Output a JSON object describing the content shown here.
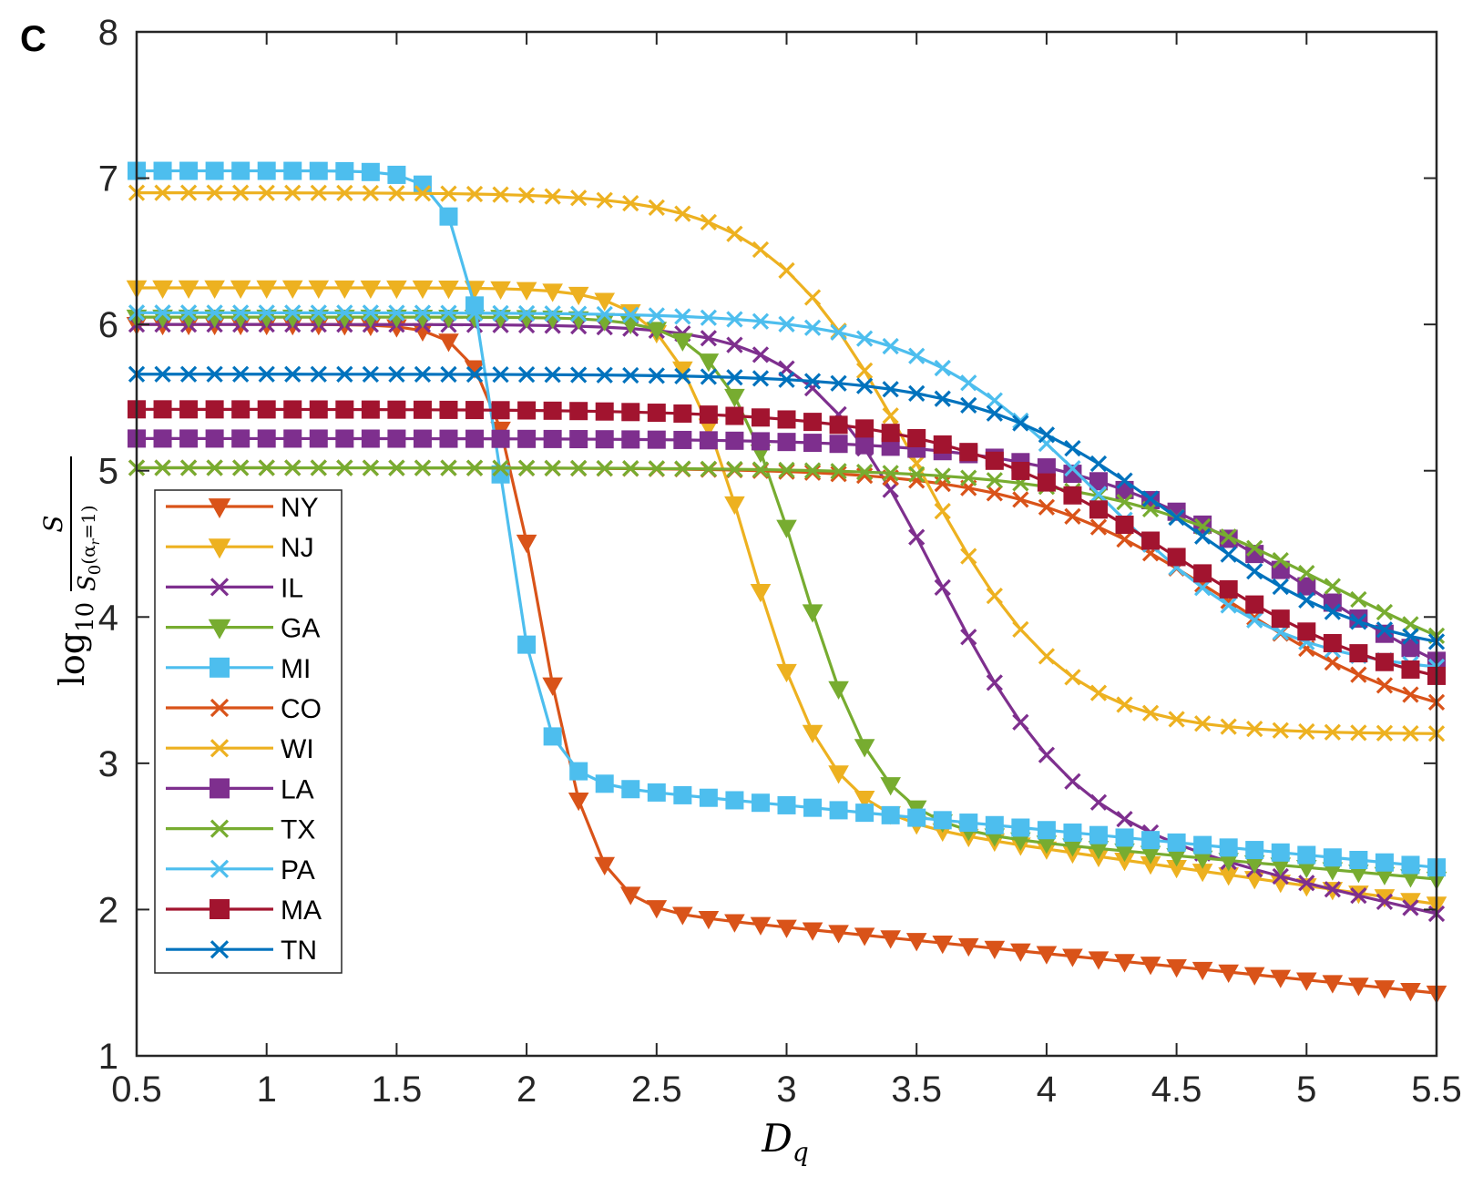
{
  "panel_label": "C",
  "chart_data": {
    "type": "line",
    "xlabel": {
      "main": "D",
      "sub": "q"
    },
    "ylabel": {
      "prefix": "log",
      "prefix_sub": "10",
      "numerator": "S",
      "denominator": "S",
      "denominator_sub": "0",
      "denominator_paren": "(α",
      "denominator_paren_sub": "r",
      "denominator_end": "=1)"
    },
    "xlim": [
      0.5,
      5.5
    ],
    "ylim": [
      1,
      8
    ],
    "x_ticks": [
      0.5,
      1,
      1.5,
      2,
      2.5,
      3,
      3.5,
      4,
      4.5,
      5,
      5.5
    ],
    "x_tick_labels": [
      "0.5",
      "1",
      "1.5",
      "2",
      "2.5",
      "3",
      "3.5",
      "4",
      "4.5",
      "5",
      "5.5"
    ],
    "y_ticks": [
      1,
      2,
      3,
      4,
      5,
      6,
      7,
      8
    ],
    "y_tick_labels": [
      "1",
      "2",
      "3",
      "4",
      "5",
      "6",
      "7",
      "8"
    ],
    "x_step": 0.1,
    "legend_position": "bottom-left",
    "series": [
      {
        "name": "NY",
        "color": "#D95319",
        "marker": "triangle-down",
        "kind": "sigmoid",
        "y_hi": 6.0,
        "y_lo": 2.05,
        "center": 2.05,
        "width": 0.1,
        "tail": 0.18
      },
      {
        "name": "NJ",
        "color": "#EDB120",
        "marker": "triangle-down",
        "kind": "sigmoid",
        "y_hi": 6.25,
        "y_lo": 2.7,
        "center": 2.85,
        "width": 0.15,
        "tail": 0.25
      },
      {
        "name": "IL",
        "color": "#7E2F8E",
        "marker": "x",
        "kind": "sigmoid",
        "y_hi": 6.0,
        "y_lo": 2.75,
        "center": 3.55,
        "width": 0.25,
        "tail": 0.4
      },
      {
        "name": "GA",
        "color": "#77AC30",
        "marker": "triangle-down",
        "kind": "sigmoid",
        "y_hi": 6.05,
        "y_lo": 2.6,
        "center": 3.05,
        "width": 0.15,
        "tail": 0.16
      },
      {
        "name": "MI",
        "color": "#4DBEEE",
        "marker": "square",
        "kind": "sigmoid",
        "y_hi": 7.05,
        "y_lo": 2.9,
        "center": 1.9,
        "width": 0.08,
        "tail": 0.17
      },
      {
        "name": "CO",
        "color": "#D95319",
        "marker": "x",
        "kind": "sigmoid",
        "y_hi": 5.02,
        "y_lo": 3.2,
        "center": 4.7,
        "width": 0.4,
        "tail": 0
      },
      {
        "name": "WI",
        "color": "#EDB120",
        "marker": "x",
        "kind": "sigmoid",
        "y_hi": 6.9,
        "y_lo": 3.2,
        "center": 3.5,
        "width": 0.28,
        "tail": 0
      },
      {
        "name": "LA",
        "color": "#7E2F8E",
        "marker": "square",
        "kind": "sigmoid",
        "y_hi": 5.22,
        "y_lo": 3.2,
        "center": 5.0,
        "width": 0.45,
        "tail": 0
      },
      {
        "name": "TX",
        "color": "#77AC30",
        "marker": "x",
        "kind": "sigmoid",
        "y_hi": 5.02,
        "y_lo": 3.4,
        "center": 5.1,
        "width": 0.45,
        "tail": 0
      },
      {
        "name": "PA",
        "color": "#4DBEEE",
        "marker": "x",
        "kind": "sigmoid",
        "y_hi": 6.08,
        "y_lo": 3.6,
        "center": 4.2,
        "width": 0.35,
        "tail": 0
      },
      {
        "name": "MA",
        "color": "#A2142F",
        "marker": "square",
        "kind": "sigmoid",
        "y_hi": 5.42,
        "y_lo": 3.4,
        "center": 4.5,
        "width": 0.45,
        "tail": 0
      },
      {
        "name": "TN",
        "color": "#0072BD",
        "marker": "x",
        "kind": "sigmoid",
        "y_hi": 5.66,
        "y_lo": 3.7,
        "center": 4.5,
        "width": 0.38,
        "tail": 0
      }
    ]
  }
}
